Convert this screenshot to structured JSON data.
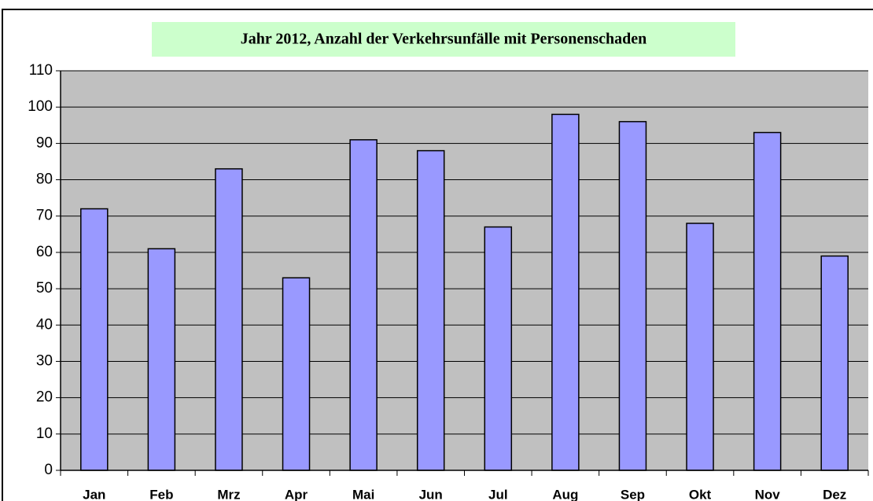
{
  "chart_data": {
    "type": "bar",
    "title": "Jahr 2012, Anzahl der Verkehrsunfälle mit Personenschaden",
    "categories": [
      "Jan",
      "Feb",
      "Mrz",
      "Apr",
      "Mai",
      "Jun",
      "Jul",
      "Aug",
      "Sep",
      "Okt",
      "Nov",
      "Dez"
    ],
    "values": [
      72,
      61,
      83,
      53,
      91,
      88,
      67,
      98,
      96,
      68,
      93,
      59
    ],
    "color": "#9999ff",
    "ylim": [
      0,
      110
    ],
    "yticks": [
      0,
      10,
      20,
      30,
      40,
      50,
      60,
      70,
      80,
      90,
      100,
      110
    ],
    "grid": true
  }
}
